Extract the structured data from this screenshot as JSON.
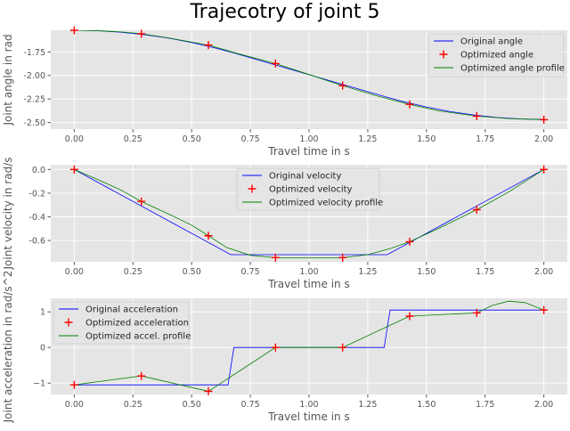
{
  "title": "Trajecotry of joint 5",
  "chart_data": [
    {
      "type": "line",
      "xlabel": "Travel time in s",
      "ylabel": "Joint angle in rad",
      "xlim": [
        -0.1,
        2.1
      ],
      "ylim": [
        -2.57,
        -1.52
      ],
      "xticks": [
        0.0,
        0.25,
        0.5,
        0.75,
        1.0,
        1.25,
        1.5,
        1.75,
        2.0
      ],
      "xtick_labels": [
        "0.00",
        "0.25",
        "0.50",
        "0.75",
        "1.00",
        "1.25",
        "1.50",
        "1.75",
        "2.00"
      ],
      "yticks": [
        -1.75,
        -2.0,
        -2.25,
        -2.5
      ],
      "ytick_labels": [
        "-1.75",
        "-2.00",
        "-2.25",
        "-2.50"
      ],
      "grid": true,
      "legend_position": "top-right",
      "series": [
        {
          "name": "Original angle",
          "kind": "line",
          "color": "#0000ff",
          "x": [
            0.0,
            0.1,
            0.2,
            0.3,
            0.4,
            0.5,
            0.6,
            0.667,
            0.8,
            0.9,
            1.0,
            1.1,
            1.2,
            1.333,
            1.4,
            1.5,
            1.6,
            1.7,
            1.8,
            1.9,
            2.0
          ],
          "y": [
            -1.52,
            -1.525,
            -1.541,
            -1.567,
            -1.603,
            -1.65,
            -1.708,
            -1.752,
            -1.848,
            -1.92,
            -1.992,
            -2.064,
            -2.136,
            -2.232,
            -2.277,
            -2.335,
            -2.383,
            -2.419,
            -2.446,
            -2.462,
            -2.467
          ]
        },
        {
          "name": "Optimized angle",
          "kind": "markers",
          "color": "#ff0000",
          "x": [
            0.0,
            0.2857,
            0.5714,
            0.8571,
            1.1429,
            1.4286,
            1.7143,
            2.0
          ],
          "y": [
            -1.52,
            -1.557,
            -1.677,
            -1.874,
            -2.108,
            -2.307,
            -2.432,
            -2.47
          ]
        },
        {
          "name": "Optimized angle profile",
          "kind": "line",
          "color": "#008000",
          "x": [
            0.0,
            0.1,
            0.2,
            0.2857,
            0.4,
            0.5,
            0.5714,
            0.7,
            0.8571,
            1.0,
            1.1429,
            1.3,
            1.4286,
            1.55,
            1.7143,
            1.85,
            2.0
          ],
          "y": [
            -1.52,
            -1.524,
            -1.538,
            -1.557,
            -1.6,
            -1.645,
            -1.677,
            -1.77,
            -1.874,
            -1.99,
            -2.108,
            -2.225,
            -2.307,
            -2.375,
            -2.432,
            -2.458,
            -2.47
          ]
        }
      ]
    },
    {
      "type": "line",
      "xlabel": "Travel time in s",
      "ylabel": "Joint velocity in rad/s",
      "xlim": [
        -0.1,
        2.1
      ],
      "ylim": [
        -0.78,
        0.04
      ],
      "xticks": [
        0.0,
        0.25,
        0.5,
        0.75,
        1.0,
        1.25,
        1.5,
        1.75,
        2.0
      ],
      "xtick_labels": [
        "0.00",
        "0.25",
        "0.50",
        "0.75",
        "1.00",
        "1.25",
        "1.50",
        "1.75",
        "2.00"
      ],
      "yticks": [
        0.0,
        -0.2,
        -0.4,
        -0.6
      ],
      "ytick_labels": [
        "0.0",
        "-0.2",
        "-0.4",
        "-0.6"
      ],
      "grid": true,
      "legend_position": "top-center",
      "series": [
        {
          "name": "Original velocity",
          "kind": "line",
          "color": "#0000ff",
          "x": [
            0.0,
            0.667,
            1.333,
            2.0
          ],
          "y": [
            0.0,
            -0.72,
            -0.72,
            0.0
          ]
        },
        {
          "name": "Optimized velocity",
          "kind": "markers",
          "color": "#ff0000",
          "x": [
            0.0,
            0.2857,
            0.5714,
            0.8571,
            1.1429,
            1.4286,
            1.7143,
            2.0
          ],
          "y": [
            0.0,
            -0.27,
            -0.56,
            -0.745,
            -0.745,
            -0.61,
            -0.34,
            0.0
          ]
        },
        {
          "name": "Optimized velocity profile",
          "kind": "line",
          "color": "#008000",
          "x": [
            0.0,
            0.1,
            0.2,
            0.2857,
            0.4,
            0.5,
            0.5714,
            0.65,
            0.75,
            0.8571,
            1.0,
            1.1429,
            1.25,
            1.35,
            1.4286,
            1.55,
            1.7143,
            1.85,
            2.0
          ],
          "y": [
            0.0,
            -0.085,
            -0.175,
            -0.27,
            -0.375,
            -0.47,
            -0.56,
            -0.66,
            -0.725,
            -0.745,
            -0.745,
            -0.745,
            -0.72,
            -0.665,
            -0.61,
            -0.5,
            -0.34,
            -0.19,
            0.0
          ]
        }
      ]
    },
    {
      "type": "line",
      "xlabel": "Travel time in s",
      "ylabel": "Joint acceleration in rad/s^2",
      "xlim": [
        -0.1,
        2.1
      ],
      "ylim": [
        -1.32,
        1.38
      ],
      "xticks": [
        0.0,
        0.25,
        0.5,
        0.75,
        1.0,
        1.25,
        1.5,
        1.75,
        2.0
      ],
      "xtick_labels": [
        "0.00",
        "0.25",
        "0.50",
        "0.75",
        "1.00",
        "1.25",
        "1.50",
        "1.75",
        "2.00"
      ],
      "yticks": [
        1,
        0,
        -1
      ],
      "ytick_labels": [
        "1",
        "0",
        "−1"
      ],
      "grid": true,
      "legend_position": "top-left",
      "series": [
        {
          "name": "Original acceleration",
          "kind": "line",
          "color": "#0000ff",
          "x": [
            0.0,
            0.655,
            0.68,
            1.32,
            1.345,
            2.0
          ],
          "y": [
            -1.05,
            -1.05,
            0.0,
            0.0,
            1.05,
            1.05
          ]
        },
        {
          "name": "Optimized acceleration",
          "kind": "markers",
          "color": "#ff0000",
          "x": [
            0.0,
            0.2857,
            0.5714,
            0.8571,
            1.1429,
            1.4286,
            1.7143,
            2.0
          ],
          "y": [
            -1.05,
            -0.8,
            -1.23,
            0.0,
            0.0,
            0.88,
            0.97,
            1.05
          ]
        },
        {
          "name": "Optimized accel. profile",
          "kind": "line",
          "color": "#008000",
          "x": [
            0.0,
            0.2857,
            0.5714,
            0.8571,
            1.1429,
            1.4286,
            1.7143,
            1.78,
            1.85,
            1.92,
            2.0
          ],
          "y": [
            -1.05,
            -0.8,
            -1.23,
            0.0,
            0.0,
            0.88,
            0.97,
            1.18,
            1.3,
            1.26,
            1.05
          ]
        }
      ]
    }
  ]
}
